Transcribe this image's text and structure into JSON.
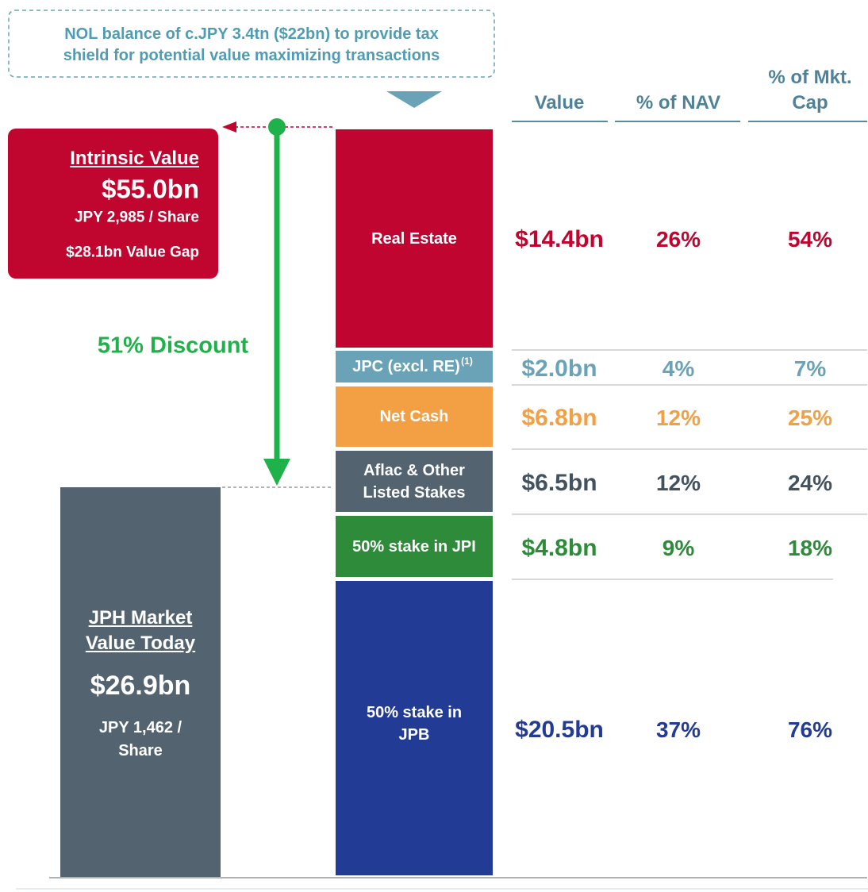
{
  "note": [
    "NOL balance of c.JPY 3.4tn ($22bn) to provide tax",
    "shield for potential value maximizing transactions"
  ],
  "columns": {
    "value": "Value",
    "nav": "% of NAV",
    "mkt": [
      "% of Mkt.",
      "Cap"
    ]
  },
  "intrinsic": {
    "title": "Intrinsic Value",
    "value": "$55.0bn",
    "per_share": "JPY 2,985 / Share",
    "gap": "$28.1bn Value Gap"
  },
  "discount": "51% Discount",
  "market": {
    "title": [
      "JPH Market",
      "Value Today"
    ],
    "value": "$26.9bn",
    "per_share": [
      "JPY 1,462 /",
      "Share"
    ]
  },
  "segments": [
    {
      "label": [
        "Real Estate"
      ],
      "value": "$14.4bn",
      "nav": "26%",
      "mkt": "54%"
    },
    {
      "label": [
        "JPC (excl. RE)"
      ],
      "footnote": "(1)",
      "value": "$2.0bn",
      "nav": "4%",
      "mkt": "7%"
    },
    {
      "label": [
        "Net Cash"
      ],
      "value": "$6.8bn",
      "nav": "12%",
      "mkt": "25%"
    },
    {
      "label": [
        "Aflac & Other",
        "Listed Stakes"
      ],
      "value": "$6.5bn",
      "nav": "12%",
      "mkt": "24%"
    },
    {
      "label": [
        "50% stake in JPI"
      ],
      "value": "$4.8bn",
      "nav": "9%",
      "mkt": "18%"
    },
    {
      "label": [
        "50% stake in",
        "JPB"
      ],
      "value": "$20.5bn",
      "nav": "37%",
      "mkt": "76%"
    }
  ]
}
